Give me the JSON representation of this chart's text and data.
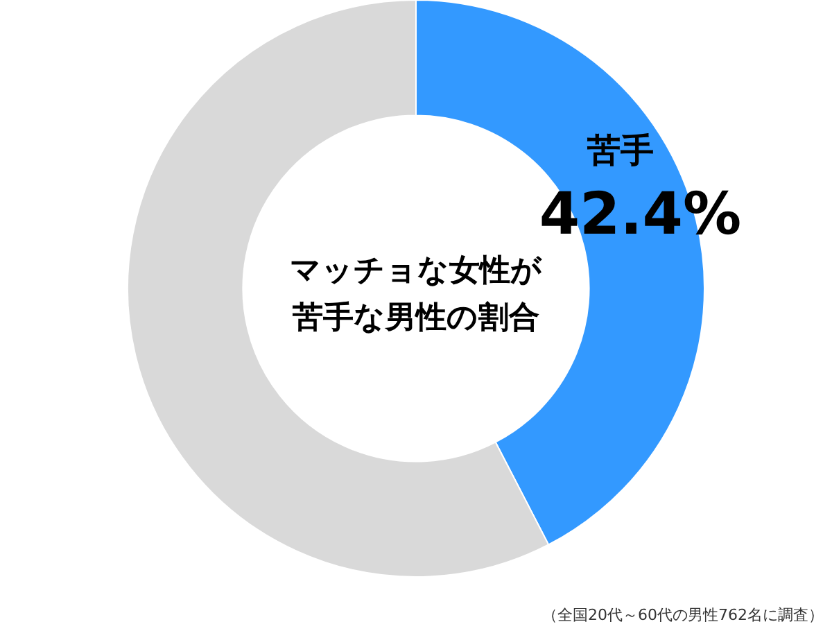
{
  "chart_data": {
    "type": "donut",
    "title": "マッチョな女性が苦手な男性の割合",
    "categories": [
      "苦手",
      null
    ],
    "values": [
      42.4,
      57.6
    ],
    "colors": [
      "#3399ff",
      "#d9d9d9"
    ],
    "value_labels": [
      "42.4%",
      null
    ],
    "annotations": [
      "（全国20代～60代の男性762名に調査）"
    ]
  }
}
